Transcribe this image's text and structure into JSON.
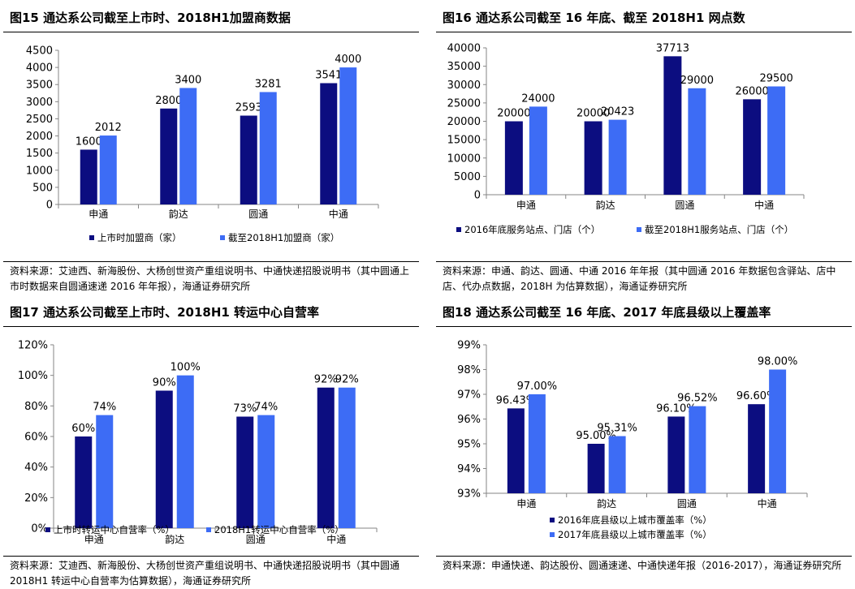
{
  "colors": {
    "dark": "#0c0d80",
    "light": "#3d6cf5",
    "axis": "#868686"
  },
  "chart_data": [
    {
      "type": "bar",
      "title": "图15 通达系公司截至上市时、2018H1加盟商数据",
      "categories": [
        "申通",
        "韵达",
        "圆通",
        "中通"
      ],
      "series": [
        {
          "name": "上市时加盟商（家）",
          "values": [
            1600,
            2800,
            2593,
            3541
          ],
          "labels": [
            "1600",
            "2800",
            "2593",
            "3541"
          ]
        },
        {
          "name": "截至2018H1加盟商（家）",
          "values": [
            2012,
            3400,
            3281,
            4000
          ],
          "labels": [
            "2012",
            "3400",
            "3281",
            "4000"
          ]
        }
      ],
      "ylim": [
        0,
        4500
      ],
      "yticks": [
        "0",
        "500",
        "1000",
        "1500",
        "2000",
        "2500",
        "3000",
        "3500",
        "4000",
        "4500"
      ],
      "xlabel": "",
      "ylabel": "",
      "legend": "bottom",
      "source": "资料来源：艾迪西、新海股份、大杨创世资产重组说明书、中通快递招股说明书（其中圆通上市时数据来自圆通速递 2016 年年报），海通证券研究所"
    },
    {
      "type": "bar",
      "title": "图16  通达系公司截至 16 年底、截至 2018H1 网点数",
      "categories": [
        "申通",
        "韵达",
        "圆通",
        "中通"
      ],
      "series": [
        {
          "name": "2016年底服务站点、门店（个）",
          "values": [
            20000,
            20000,
            37713,
            26000
          ],
          "labels": [
            "20000",
            "20000",
            "37713",
            "26000"
          ]
        },
        {
          "name": "截至2018H1服务站点、门店（个）",
          "values": [
            24000,
            20423,
            29000,
            29500
          ],
          "labels": [
            "24000",
            "20423",
            "29000",
            "29500"
          ]
        }
      ],
      "ylim": [
        0,
        40000
      ],
      "yticks": [
        "0",
        "5000",
        "10000",
        "15000",
        "20000",
        "25000",
        "30000",
        "35000",
        "40000"
      ],
      "xlabel": "",
      "ylabel": "",
      "legend": "bottom",
      "source": "资料来源：申通、韵达、圆通、中通 2016 年年报（其中圆通 2016 年数据包含驿站、店中店、代办点数据，2018H 为估算数据），海通证券研究所"
    },
    {
      "type": "bar",
      "title": "图17 通达系公司截至上市时、2018H1 转运中心自营率",
      "categories": [
        "申通",
        "韵达",
        "圆通",
        "中通"
      ],
      "series": [
        {
          "name": "上市时转运中心自营率（%）",
          "values": [
            60,
            90,
            73,
            92
          ],
          "labels": [
            "60%",
            "90%",
            "73%",
            "92%"
          ]
        },
        {
          "name": "2018H1转运中心自营率（%）",
          "values": [
            74,
            100,
            74,
            92
          ],
          "labels": [
            "74%",
            "100%",
            "74%",
            "92%"
          ]
        }
      ],
      "ylim": [
        0,
        120
      ],
      "yticks": [
        "0%",
        "20%",
        "40%",
        "60%",
        "80%",
        "100%",
        "120%"
      ],
      "xlabel": "",
      "ylabel": "",
      "legend": "bottom",
      "source": "资料来源：艾迪西、新海股份、大杨创世资产重组说明书、中通快递招股说明书（其中圆通 2018H1 转运中心自营率为估算数据），海通证券研究所"
    },
    {
      "type": "bar",
      "title": "图18  通达系公司截至 16 年底、2017 年底县级以上覆盖率",
      "categories": [
        "申通",
        "韵达",
        "圆通",
        "中通"
      ],
      "series": [
        {
          "name": "2016年底县级以上城市覆盖率（%）",
          "values": [
            96.43,
            95.0,
            96.1,
            96.6
          ],
          "labels": [
            "96.43%",
            "95.00%",
            "96.10%",
            "96.60%"
          ]
        },
        {
          "name": "2017年底县级以上城市覆盖率（%）",
          "values": [
            97.0,
            95.31,
            96.52,
            98.0
          ],
          "labels": [
            "97.00%",
            "95.31%",
            "96.52%",
            "98.00%"
          ]
        }
      ],
      "ylim": [
        93,
        99
      ],
      "yticks": [
        "93%",
        "94%",
        "95%",
        "96%",
        "97%",
        "98%",
        "99%"
      ],
      "xlabel": "",
      "ylabel": "",
      "legend": "bottom-stacked",
      "source": "资料来源：申通快递、韵达股份、圆通速递、中通快递年报（2016-2017），海通证券研究所"
    }
  ]
}
